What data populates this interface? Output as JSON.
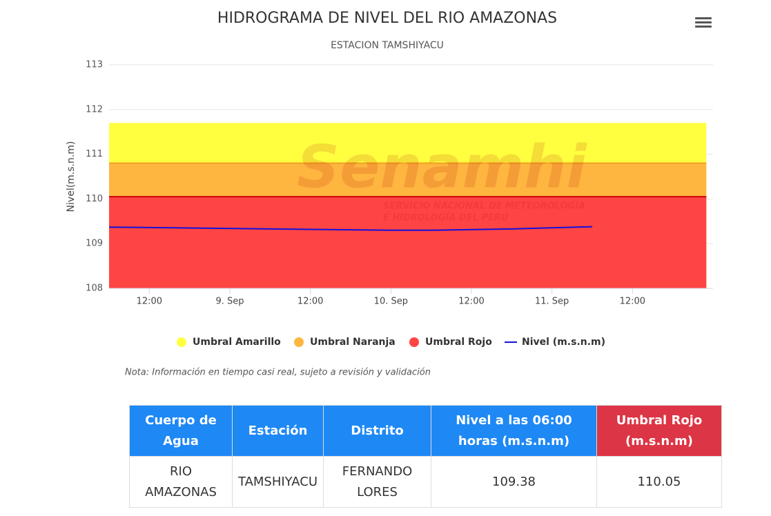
{
  "chart_data": {
    "type": "area",
    "title": "HIDROGRAMA DE NIVEL DEL RIO AMAZONAS",
    "subtitle": "ESTACION TAMSHIYACU",
    "y_label": "Nivel(m.s.n.m)",
    "note": "Nota: Información en tiempo casi real, sujeto a revisión y validación",
    "watermark": {
      "name": "Senamhi",
      "lines": [
        "SERVICIO NACIONAL DE METEOROLOGÍA",
        "E HIDROLOGÍA DEL PERÚ"
      ]
    },
    "xlim": [
      6,
      96
    ],
    "xticks": [
      {
        "value": 12,
        "label": "12:00"
      },
      {
        "value": 24,
        "label": "9. Sep"
      },
      {
        "value": 36,
        "label": "12:00"
      },
      {
        "value": 48,
        "label": "10. Sep"
      },
      {
        "value": 60,
        "label": "12:00"
      },
      {
        "value": 72,
        "label": "11. Sep"
      },
      {
        "value": 84,
        "label": "12:00"
      }
    ],
    "ylim": [
      108,
      113
    ],
    "yticks": [
      108,
      109,
      110,
      111,
      112,
      113
    ],
    "grid": true,
    "legend": "bottom",
    "series": [
      {
        "name": "Umbral Amarillo",
        "type": "area",
        "color": "#ffff40",
        "x": [
          6,
          95
        ],
        "values": [
          111.7,
          111.7
        ]
      },
      {
        "name": "Umbral Naranja",
        "type": "area",
        "color": "#ffb640",
        "edge": "#f0a020",
        "x": [
          6,
          95
        ],
        "values": [
          110.8,
          110.8
        ]
      },
      {
        "name": "Umbral Rojo",
        "type": "area",
        "color": "#ff4444",
        "edge": "#d00000",
        "x": [
          6,
          95
        ],
        "values": [
          110.05,
          110.05
        ]
      },
      {
        "name": "Nivel (m.s.n.m)",
        "type": "line",
        "color": "#1010dd",
        "x": [
          6,
          18,
          30,
          42,
          48,
          54,
          66,
          78
        ],
        "values": [
          109.37,
          109.35,
          109.33,
          109.31,
          109.3,
          109.3,
          109.33,
          109.38
        ]
      }
    ]
  },
  "table": {
    "header": [
      "Cuerpo de Agua",
      "Estación",
      "Distrito",
      "Nivel a las 06:00 horas (m.s.n.m)",
      "Umbral Rojo (m.s.n.m)"
    ],
    "rows": [
      [
        "RIO AMAZONAS",
        "TAMSHIYACU",
        "FERNANDO LORES",
        "109.38",
        "110.05"
      ]
    ]
  }
}
